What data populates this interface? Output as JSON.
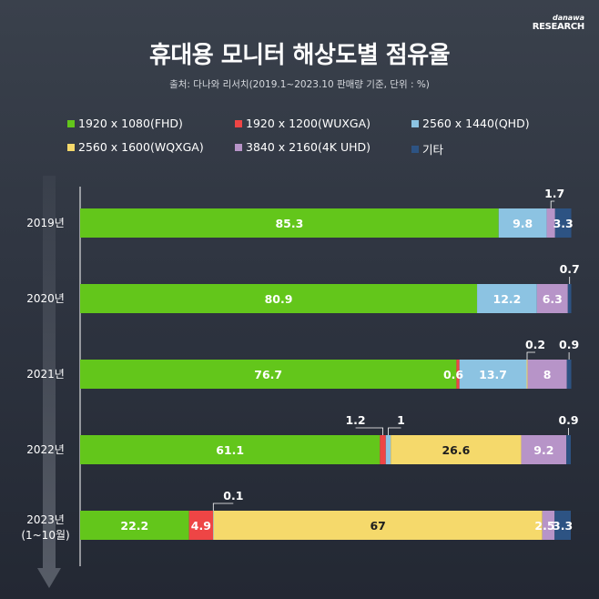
{
  "brand": {
    "line1": "danawa",
    "line2": "RESEARCH"
  },
  "title": "휴대용 모니터 해상도별 점유율",
  "subtitle": "출처: 다나와 리서치(2019.1~2023.10 판매량 기준, 단위 : %)",
  "colors": {
    "fhd": "#63c61b",
    "wuxga": "#ee4545",
    "qhd": "#8cc3e2",
    "wqxga": "#f5d96b",
    "uhd": "#b794c8",
    "other": "#2d5383"
  },
  "chart_data": {
    "type": "bar",
    "orientation": "horizontal",
    "stacked": true,
    "unit": "%",
    "xlim": [
      0,
      100
    ],
    "categories": [
      "2019년",
      "2020년",
      "2021년",
      "2022년",
      "2023년"
    ],
    "category_sublabels": [
      "",
      "",
      "",
      "",
      "(1~10월)"
    ],
    "series": [
      {
        "key": "fhd",
        "name": "1920 x 1080(FHD)",
        "values": [
          85.3,
          80.9,
          76.7,
          61.1,
          22.2
        ]
      },
      {
        "key": "wuxga",
        "name": "1920 x 1200(WUXGA)",
        "values": [
          0,
          0,
          0.6,
          1.2,
          4.9
        ]
      },
      {
        "key": "qhd",
        "name": "2560 x 1440(QHD)",
        "values": [
          9.8,
          12.2,
          13.7,
          1,
          0.1
        ]
      },
      {
        "key": "wqxga",
        "name": "2560 x 1600(WQXGA)",
        "values": [
          0,
          0,
          0.2,
          26.6,
          67
        ]
      },
      {
        "key": "uhd",
        "name": "3840 x 2160(4K UHD)",
        "values": [
          1.7,
          6.3,
          8,
          9.2,
          2.5
        ]
      },
      {
        "key": "other",
        "name": "기타",
        "values": [
          3.3,
          0.7,
          0.9,
          0.9,
          3.3
        ]
      }
    ],
    "data_labels": [
      [
        "85.3",
        "",
        "9.8",
        "",
        "1.7",
        "3.3"
      ],
      [
        "80.9",
        "",
        "12.2",
        "",
        "6.3",
        "0.7"
      ],
      [
        "76.7",
        "0.6",
        "13.7",
        "0.2",
        "8",
        "0.9"
      ],
      [
        "61.1",
        "1.2",
        "1",
        "26.6",
        "9.2",
        "0.9"
      ],
      [
        "22.2",
        "4.9",
        "0.1",
        "67",
        "2.5",
        "3.3"
      ]
    ],
    "legend_position": "top"
  }
}
